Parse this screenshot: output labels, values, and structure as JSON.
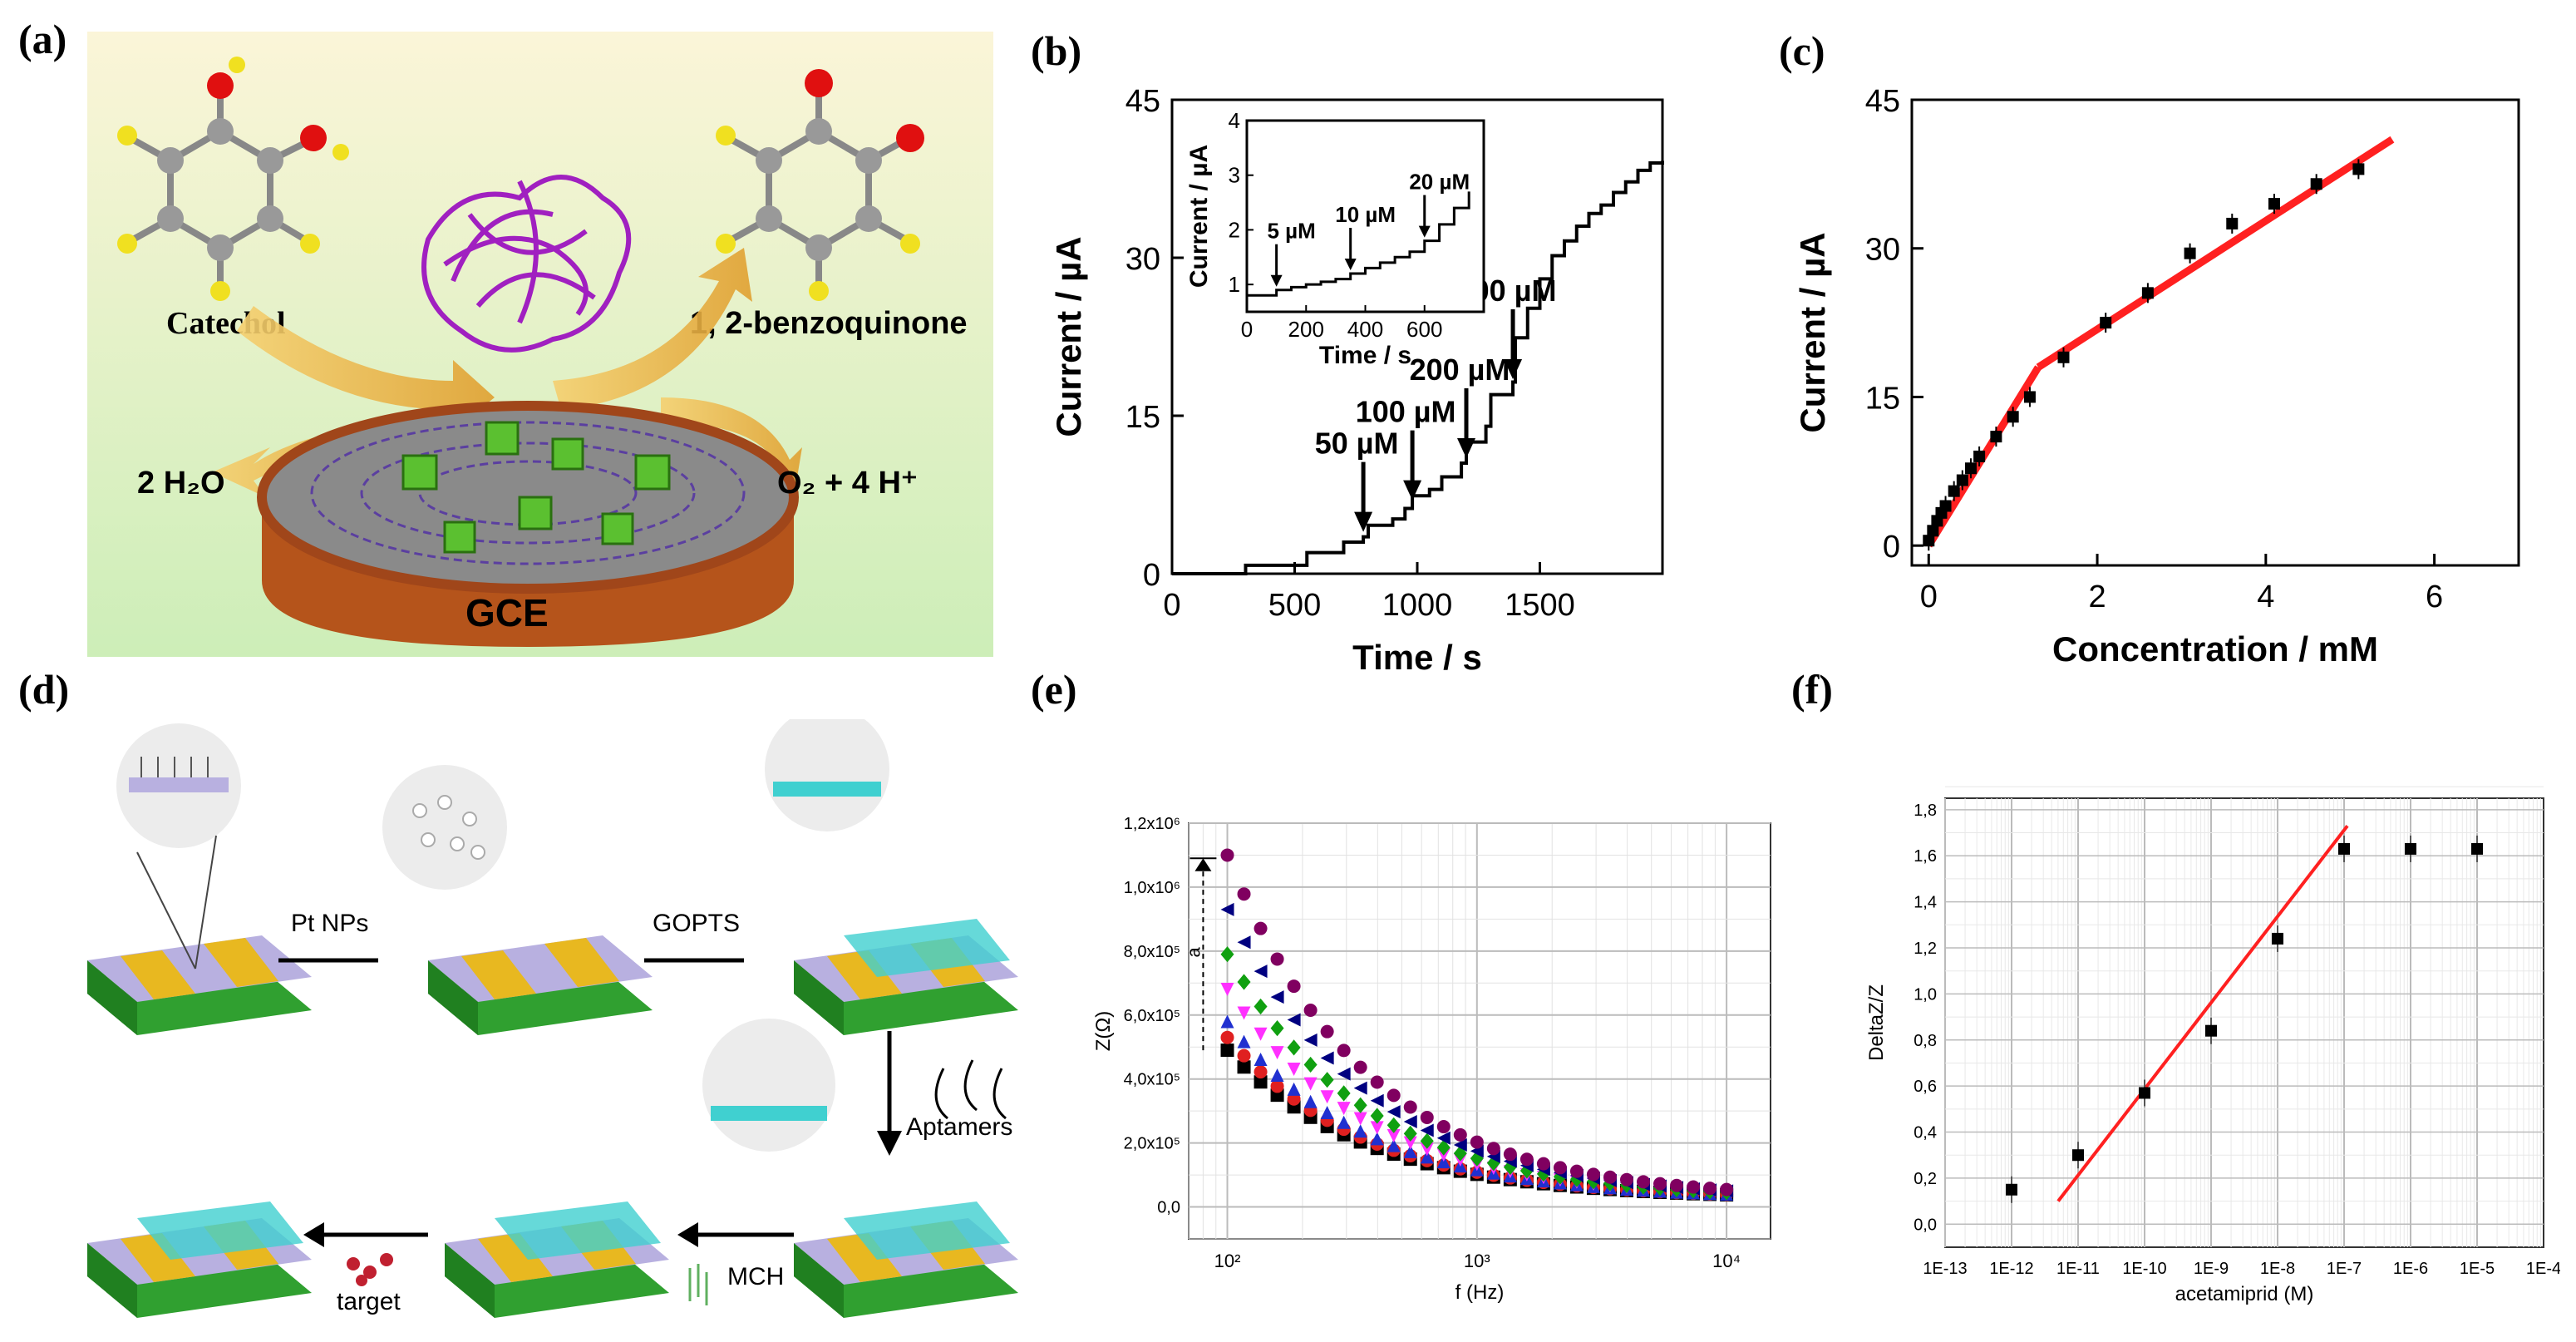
{
  "panel_labels": [
    "(a)",
    "(b)",
    "(c)",
    "(d)",
    "(e)",
    "(f)"
  ],
  "colors": {
    "scheme_bg": "#d9f3c8",
    "protein": "#a020c0",
    "electrode_side": "#b5541b",
    "graphene": "#5b3fa0",
    "fit_line": "#ff2020",
    "gold": "#e8b820",
    "cyan": "#40d0d0",
    "lavender": "#b8b0e0"
  },
  "scheme_a": {
    "catechol": "Catechol",
    "benzoquinone": "1, 2-benzoquinone",
    "water": "2 H₂O",
    "oxygen": "O₂ + 4 H⁺",
    "electrode": "GCE"
  },
  "scheme_d": {
    "step1": "Pt NPs",
    "step2": "GOPTS",
    "step3": "Aptamers",
    "step4": "MCH",
    "step5": "target"
  },
  "chart_data": [
    {
      "type": "line",
      "panel": "(b)",
      "xlabel": "Time / s",
      "ylabel": "Current / µA",
      "xlim": [
        0,
        2000
      ],
      "ylim": [
        0,
        45
      ],
      "xticks": [
        "0",
        "500",
        "1000",
        "1500"
      ],
      "yticks": [
        "0",
        "15",
        "30",
        "45"
      ],
      "x": [
        0,
        300,
        550,
        700,
        780,
        800,
        900,
        950,
        980,
        1050,
        1100,
        1180,
        1200,
        1280,
        1300,
        1390,
        1400,
        1450,
        1500,
        1550,
        1600,
        1650,
        1700,
        1750,
        1800,
        1850,
        1900,
        1950,
        2000
      ],
      "y": [
        0,
        0.8,
        2,
        3,
        3.5,
        4.6,
        5.2,
        6.2,
        7.4,
        8.0,
        9.2,
        10.5,
        12.5,
        14.0,
        17.0,
        18.2,
        22.4,
        25.2,
        28.0,
        30.2,
        31.6,
        33.0,
        34.2,
        35.0,
        36.2,
        37.2,
        38.3,
        39.0,
        39.2
      ],
      "annotations": [
        {
          "text": "50 µM",
          "x": 780,
          "y": 3.5
        },
        {
          "text": "100 µM",
          "x": 980,
          "y": 6.5
        },
        {
          "text": "200 µM",
          "x": 1200,
          "y": 10.5
        },
        {
          "text": "500 µM",
          "x": 1390,
          "y": 18
        }
      ],
      "inset": {
        "xlabel": "Time / s",
        "ylabel": "Current / µA",
        "xlim": [
          0,
          800
        ],
        "ylim": [
          0.5,
          4
        ],
        "xticks": [
          "0",
          "200",
          "400",
          "600"
        ],
        "yticks": [
          "1",
          "2",
          "3",
          "4"
        ],
        "x": [
          0,
          50,
          100,
          150,
          200,
          250,
          300,
          350,
          400,
          450,
          500,
          550,
          600,
          650,
          700,
          750
        ],
        "y": [
          0.8,
          0.8,
          0.9,
          0.95,
          1.0,
          1.05,
          1.1,
          1.2,
          1.3,
          1.4,
          1.5,
          1.6,
          1.8,
          2.1,
          2.4,
          2.7
        ],
        "annotations": [
          {
            "text": "5 µM",
            "x": 100,
            "y": 0.9
          },
          {
            "text": "10 µM",
            "x": 350,
            "y": 1.2
          },
          {
            "text": "20 µM",
            "x": 600,
            "y": 1.8
          }
        ]
      }
    },
    {
      "type": "scatter",
      "panel": "(c)",
      "xlabel": "Concentration / mM",
      "ylabel": "Current / µA",
      "xlim": [
        -0.2,
        7
      ],
      "ylim": [
        -2,
        45
      ],
      "xticks": [
        "0",
        "2",
        "4",
        "6"
      ],
      "yticks": [
        "0",
        "15",
        "30",
        "45"
      ],
      "x": [
        0,
        0.05,
        0.1,
        0.15,
        0.2,
        0.3,
        0.4,
        0.5,
        0.6,
        0.8,
        1.0,
        1.2,
        1.6,
        2.1,
        2.6,
        3.1,
        3.6,
        4.1,
        4.6,
        5.1
      ],
      "y": [
        0.5,
        1.5,
        2.5,
        3.3,
        4.0,
        5.5,
        6.6,
        7.8,
        9.0,
        11.0,
        13.0,
        15.0,
        19.0,
        22.5,
        25.5,
        29.5,
        32.5,
        34.5,
        36.5,
        38.0
      ],
      "fit_segments": [
        {
          "x": [
            0,
            1.3
          ],
          "y": [
            0,
            18
          ]
        },
        {
          "x": [
            1.3,
            5.5
          ],
          "y": [
            18,
            41
          ]
        }
      ]
    },
    {
      "type": "scatter",
      "panel": "(e)",
      "xlabel": "f (Hz)",
      "ylabel": "Z(Ω)",
      "xscale": "log",
      "xlim": [
        70,
        15000
      ],
      "ylim": [
        -0.1,
        1.2
      ],
      "xticks": [
        "10²",
        "10³",
        "10⁴"
      ],
      "yticks": [
        "0,0",
        "2,0x10⁵",
        "4,0x10⁵",
        "6,0x10⁵",
        "8,0x10⁵",
        "1,0x10⁶",
        "1,2x10⁶"
      ],
      "annotation": "a",
      "series": [
        {
          "color": "#000000",
          "marker": "square",
          "start": 0.49
        },
        {
          "color": "#e02020",
          "marker": "circle",
          "start": 0.53
        },
        {
          "color": "#2030d0",
          "marker": "triangle-up",
          "start": 0.58
        },
        {
          "color": "#ff30ff",
          "marker": "triangle-down",
          "start": 0.68
        },
        {
          "color": "#10a010",
          "marker": "diamond",
          "start": 0.79
        },
        {
          "color": "#000080",
          "marker": "triangle-left",
          "start": 0.93
        },
        {
          "color": "#800060",
          "marker": "circle",
          "start": 1.1
        }
      ]
    },
    {
      "type": "scatter",
      "panel": "(f)",
      "xlabel": "acetamiprid (M)",
      "ylabel": "DeltaZ/Z",
      "xlim": [
        -13,
        -4
      ],
      "ylim": [
        -0.1,
        1.85
      ],
      "xticks": [
        "1E-13",
        "1E-12",
        "1E-11",
        "1E-10",
        "1E-9",
        "1E-8",
        "1E-7",
        "1E-6",
        "1E-5",
        "1E-4"
      ],
      "yticks": [
        "0,0",
        "0,2",
        "0,4",
        "0,6",
        "0,8",
        "1,0",
        "1,2",
        "1,4",
        "1,6",
        "1,8"
      ],
      "x": [
        -12,
        -11,
        -10,
        -9,
        -8,
        -7,
        -6,
        -5
      ],
      "y": [
        0.15,
        0.3,
        0.57,
        0.84,
        1.24,
        1.63,
        1.63,
        1.63
      ],
      "fit_line": {
        "x": [
          -11.3,
          -6.95
        ],
        "y": [
          0.1,
          1.73
        ]
      }
    }
  ]
}
